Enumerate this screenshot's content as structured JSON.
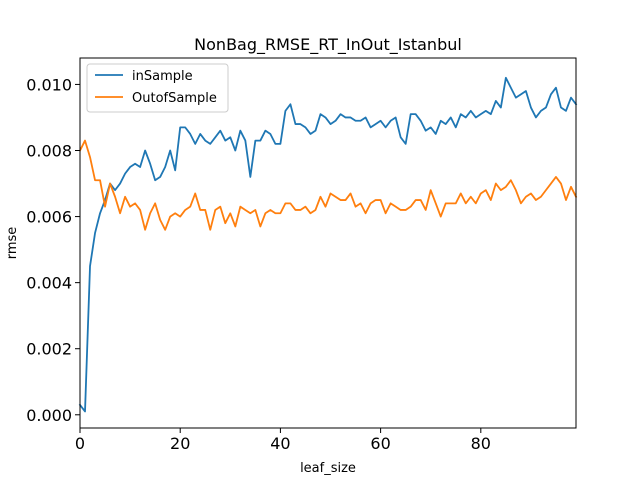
{
  "chart_data": {
    "type": "line",
    "title": "NonBag_RMSE_RT_InOut_Istanbul",
    "xlabel": "leaf_size",
    "ylabel": "rmse",
    "xlim": [
      0,
      99
    ],
    "ylim": [
      -0.0004,
      0.0108
    ],
    "xticks": [
      0,
      20,
      40,
      60,
      80
    ],
    "xtick_labels": [
      "0",
      "20",
      "40",
      "60",
      "80"
    ],
    "yticks": [
      0.0,
      0.002,
      0.004,
      0.006,
      0.008,
      0.01
    ],
    "ytick_labels": [
      "0.000",
      "0.002",
      "0.004",
      "0.006",
      "0.008",
      "0.010"
    ],
    "grid": false,
    "legend": "top-left",
    "series": [
      {
        "name": "inSample",
        "color": "#1f77b4",
        "x": [
          0,
          1,
          2,
          3,
          4,
          5,
          6,
          7,
          8,
          9,
          10,
          11,
          12,
          13,
          14,
          15,
          16,
          17,
          18,
          19,
          20,
          21,
          22,
          23,
          24,
          25,
          26,
          27,
          28,
          29,
          30,
          31,
          32,
          33,
          34,
          35,
          36,
          37,
          38,
          39,
          40,
          41,
          42,
          43,
          44,
          45,
          46,
          47,
          48,
          49,
          50,
          51,
          52,
          53,
          54,
          55,
          56,
          57,
          58,
          59,
          60,
          61,
          62,
          63,
          64,
          65,
          66,
          67,
          68,
          69,
          70,
          71,
          72,
          73,
          74,
          75,
          76,
          77,
          78,
          79,
          80,
          81,
          82,
          83,
          84,
          85,
          86,
          87,
          88,
          89,
          90,
          91,
          92,
          93,
          94,
          95,
          96,
          97,
          98,
          99
        ],
        "values": [
          0.0003,
          0.0001,
          0.0045,
          0.0055,
          0.0061,
          0.0065,
          0.007,
          0.0068,
          0.007,
          0.0073,
          0.0075,
          0.0076,
          0.0075,
          0.008,
          0.0076,
          0.0071,
          0.0072,
          0.0075,
          0.008,
          0.0074,
          0.0087,
          0.0087,
          0.0085,
          0.0082,
          0.0085,
          0.0083,
          0.0082,
          0.0084,
          0.0086,
          0.0083,
          0.0084,
          0.008,
          0.0086,
          0.0083,
          0.0072,
          0.0083,
          0.0083,
          0.0086,
          0.0085,
          0.0082,
          0.0082,
          0.0092,
          0.0094,
          0.0088,
          0.0088,
          0.0087,
          0.0085,
          0.0086,
          0.0091,
          0.009,
          0.0088,
          0.0089,
          0.0091,
          0.009,
          0.009,
          0.0089,
          0.0089,
          0.009,
          0.0087,
          0.0088,
          0.0089,
          0.0087,
          0.0089,
          0.009,
          0.0084,
          0.0082,
          0.0091,
          0.0091,
          0.0089,
          0.0086,
          0.0087,
          0.0085,
          0.0089,
          0.0088,
          0.009,
          0.0087,
          0.0091,
          0.009,
          0.0092,
          0.009,
          0.0091,
          0.0092,
          0.0091,
          0.0095,
          0.0093,
          0.0102,
          0.0099,
          0.0096,
          0.0097,
          0.0098,
          0.0093,
          0.009,
          0.0092,
          0.0093,
          0.0097,
          0.0099,
          0.0093,
          0.0092,
          0.0096,
          0.0094
        ]
      },
      {
        "name": "OutofSample",
        "color": "#ff7f0e",
        "x": [
          0,
          1,
          2,
          3,
          4,
          5,
          6,
          7,
          8,
          9,
          10,
          11,
          12,
          13,
          14,
          15,
          16,
          17,
          18,
          19,
          20,
          21,
          22,
          23,
          24,
          25,
          26,
          27,
          28,
          29,
          30,
          31,
          32,
          33,
          34,
          35,
          36,
          37,
          38,
          39,
          40,
          41,
          42,
          43,
          44,
          45,
          46,
          47,
          48,
          49,
          50,
          51,
          52,
          53,
          54,
          55,
          56,
          57,
          58,
          59,
          60,
          61,
          62,
          63,
          64,
          65,
          66,
          67,
          68,
          69,
          70,
          71,
          72,
          73,
          74,
          75,
          76,
          77,
          78,
          79,
          80,
          81,
          82,
          83,
          84,
          85,
          86,
          87,
          88,
          89,
          90,
          91,
          92,
          93,
          94,
          95,
          96,
          97,
          98,
          99
        ],
        "values": [
          0.008,
          0.0083,
          0.0078,
          0.0071,
          0.0071,
          0.0063,
          0.007,
          0.0066,
          0.0061,
          0.0066,
          0.0063,
          0.0064,
          0.0062,
          0.0056,
          0.0061,
          0.0064,
          0.0059,
          0.0056,
          0.006,
          0.0061,
          0.006,
          0.0062,
          0.0063,
          0.0067,
          0.0062,
          0.0062,
          0.0056,
          0.0062,
          0.0063,
          0.0058,
          0.0061,
          0.0057,
          0.0063,
          0.0062,
          0.0061,
          0.0062,
          0.0057,
          0.0061,
          0.0062,
          0.0061,
          0.0061,
          0.0064,
          0.0064,
          0.0062,
          0.0062,
          0.0063,
          0.0061,
          0.0062,
          0.0066,
          0.0063,
          0.0067,
          0.0066,
          0.0065,
          0.0065,
          0.0067,
          0.0063,
          0.0064,
          0.0061,
          0.0064,
          0.0065,
          0.0065,
          0.0061,
          0.0064,
          0.0063,
          0.0062,
          0.0062,
          0.0063,
          0.0065,
          0.0065,
          0.0062,
          0.0068,
          0.0064,
          0.006,
          0.0064,
          0.0064,
          0.0064,
          0.0067,
          0.0064,
          0.0066,
          0.0064,
          0.0067,
          0.0068,
          0.0065,
          0.007,
          0.0068,
          0.0069,
          0.0071,
          0.0068,
          0.0064,
          0.0066,
          0.0067,
          0.0065,
          0.0066,
          0.0068,
          0.007,
          0.0072,
          0.007,
          0.0065,
          0.0069,
          0.0066
        ]
      }
    ]
  }
}
